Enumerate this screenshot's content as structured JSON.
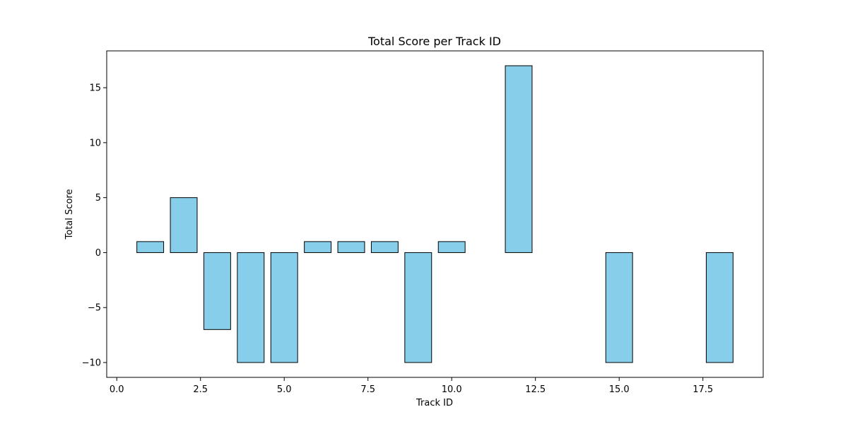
{
  "chart_data": {
    "type": "bar",
    "title": "Total Score per Track ID",
    "xlabel": "Track ID",
    "ylabel": "Total Score",
    "x": [
      1,
      2,
      3,
      4,
      5,
      6,
      7,
      8,
      9,
      10,
      12,
      15,
      18
    ],
    "values": [
      1,
      5,
      -7,
      -10,
      -10,
      1,
      1,
      1,
      -10,
      1,
      17,
      -10,
      -10
    ],
    "bar_width": 0.8,
    "xlim": [
      -0.3,
      19.3
    ],
    "ylim": [
      -11.35,
      18.35
    ],
    "xticks": [
      0.0,
      2.5,
      5.0,
      7.5,
      10.0,
      12.5,
      15.0,
      17.5
    ],
    "xtick_labels": [
      "0.0",
      "2.5",
      "5.0",
      "7.5",
      "10.0",
      "12.5",
      "15.0",
      "17.5"
    ],
    "yticks": [
      -10,
      -5,
      0,
      5,
      10,
      15
    ],
    "ytick_labels": [
      "−10",
      "−5",
      "0",
      "5",
      "10",
      "15"
    ],
    "grid": false,
    "legend": "none",
    "colors": {
      "bar_fill": "#87ceeb",
      "bar_edge": "#000000",
      "axes": "#000000",
      "background": "#ffffff"
    }
  }
}
